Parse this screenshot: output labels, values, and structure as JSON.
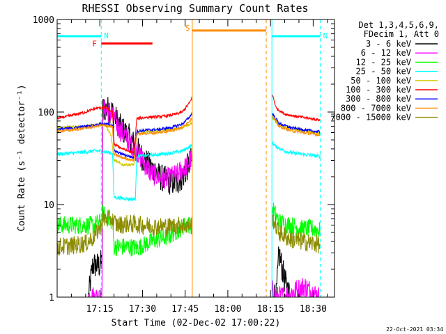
{
  "chart_data": {
    "type": "line",
    "title": "RHESSI Observing Summary Count Rates",
    "xlabel": "Start Time (02-Dec-02 17:00:22)",
    "ylabel": "Count Rate (s⁻¹ detector⁻¹)",
    "y_scale": "log",
    "ylim": [
      1,
      1000
    ],
    "xlim_minutes": [
      0,
      97.5
    ],
    "y_ticks": [
      {
        "value": 1,
        "label": "1"
      },
      {
        "value": 10,
        "label": "10"
      },
      {
        "value": 100,
        "label": "100"
      },
      {
        "value": 1000,
        "label": "1000"
      }
    ],
    "x_ticks": [
      {
        "value": 15,
        "label": "17:15"
      },
      {
        "value": 30,
        "label": "17:30"
      },
      {
        "value": 45,
        "label": "17:45"
      },
      {
        "value": 60,
        "label": "18:00"
      },
      {
        "value": 75,
        "label": "18:15"
      },
      {
        "value": 90,
        "label": "18:30"
      }
    ],
    "legend": {
      "placement": "right",
      "header": [
        "Det 1,3,4,5,6,9,",
        "FDecim 1, Att 0"
      ],
      "entries": [
        {
          "name": "3 - 6 keV",
          "color": "#000000"
        },
        {
          "name": "6 - 12 keV",
          "color": "#ff00ff"
        },
        {
          "name": "12 - 25 keV",
          "color": "#00ff00"
        },
        {
          "name": "25 - 50 keV",
          "color": "#00ffff"
        },
        {
          "name": "50 - 100 keV",
          "color": "#d4c800"
        },
        {
          "name": "100 - 300 keV",
          "color": "#ff0000"
        },
        {
          "name": "300 - 800 keV",
          "color": "#0000ff"
        },
        {
          "name": "800 - 7000 keV",
          "color": "#ff8c00"
        },
        {
          "name": "7000 - 15000 keV",
          "color": "#8c8c00"
        }
      ]
    },
    "flags": [
      {
        "label": "N",
        "color": "#00ffff",
        "start": 0,
        "end": 15.5,
        "y": 660,
        "lines": [
          15.5
        ]
      },
      {
        "label": "N",
        "color": "#00ffff",
        "start": 75.5,
        "end": 92.5,
        "y": 660,
        "lines": [
          75.5,
          92.5
        ]
      },
      {
        "label": "F",
        "color": "#ff0000",
        "start": 15.5,
        "end": 33.5,
        "y": 550,
        "lines": []
      },
      {
        "label": "S",
        "color": "#ff8c00",
        "start": 47.5,
        "end": 73.5,
        "y": 760,
        "lines": [
          47.5,
          73.5
        ]
      }
    ],
    "series": [
      {
        "name": "3 - 6 keV",
        "color": "#000000",
        "noise": 0.3,
        "gaps": [
          [
            47.5,
            75.5
          ]
        ],
        "points": [
          [
            11,
            1
          ],
          [
            12.5,
            2.2
          ],
          [
            14,
            2.2
          ],
          [
            15,
            2.2
          ],
          [
            15.8,
            2.5
          ],
          [
            16,
            110
          ],
          [
            19,
            105
          ],
          [
            22,
            70
          ],
          [
            25,
            55
          ],
          [
            28,
            40
          ],
          [
            30,
            32
          ],
          [
            33,
            25
          ],
          [
            36,
            20
          ],
          [
            39,
            18
          ],
          [
            42,
            17
          ],
          [
            45,
            22
          ],
          [
            46.5,
            28
          ],
          [
            47.2,
            30
          ],
          [
            77,
            1
          ],
          [
            78,
            3
          ],
          [
            80,
            1.5
          ],
          [
            82,
            1
          ]
        ]
      },
      {
        "name": "6 - 12 keV",
        "color": "#ff00ff",
        "noise": 0.25,
        "gaps": [
          [
            47.5,
            75.5
          ]
        ],
        "points": [
          [
            11,
            1
          ],
          [
            13,
            1
          ],
          [
            15,
            1
          ],
          [
            15.8,
            1
          ],
          [
            16,
            105
          ],
          [
            19,
            100
          ],
          [
            22,
            65
          ],
          [
            25,
            50
          ],
          [
            28,
            38
          ],
          [
            30,
            30
          ],
          [
            33,
            22
          ],
          [
            36,
            20
          ],
          [
            39,
            19
          ],
          [
            42,
            21
          ],
          [
            45,
            25
          ],
          [
            46.5,
            29
          ],
          [
            47.2,
            30
          ],
          [
            77,
            1
          ],
          [
            79,
            1
          ],
          [
            87,
            1.3
          ],
          [
            92,
            1
          ]
        ]
      },
      {
        "name": "12 - 25 keV",
        "color": "#00ff00",
        "noise": 0.2,
        "gaps": [
          [
            47.5,
            75.5
          ]
        ],
        "points": [
          [
            0,
            6
          ],
          [
            5,
            6
          ],
          [
            10,
            6
          ],
          [
            13,
            6
          ],
          [
            15.5,
            6.5
          ],
          [
            16,
            8
          ],
          [
            18,
            7
          ],
          [
            19.5,
            6.5
          ],
          [
            20,
            3.5
          ],
          [
            25,
            3.5
          ],
          [
            28,
            3.4
          ],
          [
            30,
            3.6
          ],
          [
            33,
            4
          ],
          [
            36,
            4.2
          ],
          [
            39,
            4.5
          ],
          [
            42,
            5.2
          ],
          [
            45,
            6
          ],
          [
            46.5,
            6
          ],
          [
            47.2,
            6
          ],
          [
            75.8,
            9
          ],
          [
            78,
            6.5
          ],
          [
            82,
            6
          ],
          [
            86,
            5.5
          ],
          [
            90,
            5.5
          ],
          [
            92.5,
            5.2
          ]
        ]
      },
      {
        "name": "25 - 50 keV",
        "color": "#00ffff",
        "noise": 0.04,
        "gaps": [
          [
            47.5,
            75.5
          ]
        ],
        "points": [
          [
            0,
            35
          ],
          [
            5,
            36
          ],
          [
            10,
            37
          ],
          [
            13,
            38
          ],
          [
            15.5,
            38
          ],
          [
            17,
            37
          ],
          [
            19,
            36
          ],
          [
            19.5,
            35
          ],
          [
            20,
            12
          ],
          [
            25,
            11.5
          ],
          [
            27.5,
            11.5
          ],
          [
            28,
            33
          ],
          [
            32,
            34
          ],
          [
            36,
            35
          ],
          [
            40,
            36
          ],
          [
            44,
            38
          ],
          [
            46.5,
            42
          ],
          [
            47.2,
            43
          ],
          [
            75.8,
            46
          ],
          [
            77,
            42
          ],
          [
            80,
            38
          ],
          [
            83,
            36
          ],
          [
            86,
            35
          ],
          [
            90,
            34
          ],
          [
            92.5,
            33
          ]
        ]
      },
      {
        "name": "50 - 100 keV",
        "color": "#d4c800",
        "noise": 0.03,
        "gaps": [
          [
            47.5,
            75.5
          ]
        ],
        "points": [
          [
            0,
            68
          ],
          [
            5,
            69
          ],
          [
            10,
            70
          ],
          [
            13,
            72
          ],
          [
            15.5,
            74
          ],
          [
            17,
            72
          ],
          [
            19,
            55
          ],
          [
            20,
            30
          ],
          [
            23,
            27
          ],
          [
            27,
            27
          ],
          [
            28,
            60
          ],
          [
            32,
            62
          ],
          [
            36,
            63
          ],
          [
            40,
            65
          ],
          [
            44,
            68
          ],
          [
            46.5,
            74
          ],
          [
            47.2,
            76
          ],
          [
            75.8,
            85
          ],
          [
            78,
            72
          ],
          [
            82,
            67
          ],
          [
            86,
            63
          ],
          [
            90,
            60
          ],
          [
            92.5,
            59
          ]
        ]
      },
      {
        "name": "100 - 300 keV",
        "color": "#ff0000",
        "noise": 0.03,
        "gaps": [
          [
            47.5,
            75.5
          ]
        ],
        "points": [
          [
            0,
            85
          ],
          [
            5,
            92
          ],
          [
            10,
            100
          ],
          [
            13,
            108
          ],
          [
            15.5,
            112
          ],
          [
            17,
            112
          ],
          [
            18.5,
            105
          ],
          [
            19.5,
            100
          ],
          [
            20,
            45
          ],
          [
            23,
            40
          ],
          [
            27,
            36
          ],
          [
            28,
            85
          ],
          [
            32,
            88
          ],
          [
            36,
            89
          ],
          [
            40,
            92
          ],
          [
            44,
            100
          ],
          [
            46.5,
            125
          ],
          [
            47.2,
            140
          ],
          [
            75.8,
            150
          ],
          [
            77,
            110
          ],
          [
            80,
            95
          ],
          [
            84,
            90
          ],
          [
            88,
            86
          ],
          [
            92.5,
            82
          ]
        ]
      },
      {
        "name": "300 - 800 keV",
        "color": "#0000ff",
        "noise": 0.03,
        "gaps": [
          [
            47.5,
            75.5
          ]
        ],
        "points": [
          [
            0,
            65
          ],
          [
            5,
            67
          ],
          [
            10,
            70
          ],
          [
            13,
            72
          ],
          [
            15.5,
            75
          ],
          [
            19,
            73
          ],
          [
            19.5,
            72
          ],
          [
            20,
            38
          ],
          [
            23,
            35
          ],
          [
            27,
            32
          ],
          [
            28,
            62
          ],
          [
            32,
            64
          ],
          [
            36,
            65
          ],
          [
            40,
            68
          ],
          [
            44,
            74
          ],
          [
            46.5,
            88
          ],
          [
            47.2,
            95
          ],
          [
            75.8,
            95
          ],
          [
            78,
            75
          ],
          [
            82,
            68
          ],
          [
            86,
            65
          ],
          [
            90,
            62
          ],
          [
            92.5,
            61
          ]
        ]
      },
      {
        "name": "800 - 7000 keV",
        "color": "#ff8c00",
        "noise": 0.03,
        "gaps": [
          [
            47.5,
            75.5
          ]
        ],
        "points": [
          [
            0,
            62
          ],
          [
            5,
            64
          ],
          [
            10,
            67
          ],
          [
            13,
            70
          ],
          [
            15.5,
            72
          ],
          [
            19,
            70
          ],
          [
            19.5,
            68
          ],
          [
            20,
            35
          ],
          [
            23,
            32
          ],
          [
            27,
            30
          ],
          [
            28,
            58
          ],
          [
            32,
            59
          ],
          [
            36,
            60
          ],
          [
            40,
            63
          ],
          [
            44,
            68
          ],
          [
            46.5,
            80
          ],
          [
            47.2,
            85
          ],
          [
            75.8,
            90
          ],
          [
            78,
            70
          ],
          [
            82,
            63
          ],
          [
            86,
            60
          ],
          [
            90,
            58
          ],
          [
            92.5,
            56
          ]
        ]
      },
      {
        "name": "7000 - 15000 keV",
        "color": "#8c8c00",
        "noise": 0.2,
        "gaps": [
          [
            47.5,
            75.5
          ]
        ],
        "points": [
          [
            0,
            3.5
          ],
          [
            5,
            3.6
          ],
          [
            10,
            3.8
          ],
          [
            13,
            4.5
          ],
          [
            15.5,
            6
          ],
          [
            16,
            7
          ],
          [
            19,
            7
          ],
          [
            21,
            6
          ],
          [
            25,
            6.2
          ],
          [
            30,
            6
          ],
          [
            35,
            5.8
          ],
          [
            40,
            5.8
          ],
          [
            44,
            6
          ],
          [
            46.5,
            6
          ],
          [
            47.2,
            6
          ],
          [
            75.8,
            7
          ],
          [
            78,
            5
          ],
          [
            82,
            4.2
          ],
          [
            86,
            4
          ],
          [
            90,
            3.8
          ],
          [
            92.5,
            3.7
          ]
        ]
      }
    ]
  },
  "footer": {
    "timestamp": "22-Oct-2021 03:34"
  }
}
